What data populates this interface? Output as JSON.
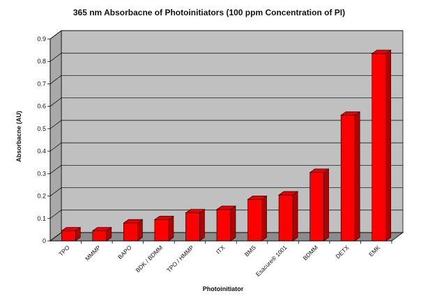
{
  "chart_data": {
    "type": "bar",
    "title": "365 nm Absorbacne of Photoinitiators (100 ppm Concentration of PI)",
    "xlabel": "Photoinitiator",
    "ylabel": "Absorbacne (AU)",
    "ylim": [
      0,
      0.9
    ],
    "yticks": [
      "0",
      "0.1",
      "0.2",
      "0.3",
      "0.4",
      "0.5",
      "0.6",
      "0.7",
      "0.8",
      "0.9"
    ],
    "categories": [
      "TPO",
      "MMMP",
      "BAPO",
      "BDK / BDMM",
      "TPO / HMMP",
      "ITX",
      "BMS",
      "Esacure® 1001",
      "BDMM",
      "DETX",
      "EMK"
    ],
    "values": [
      0.045,
      0.045,
      0.08,
      0.095,
      0.125,
      0.14,
      0.185,
      0.205,
      0.305,
      0.56,
      0.835
    ],
    "grid": true,
    "legend": "none",
    "colors": {
      "bar_front": "#ff0000",
      "bar_side": "#b30000",
      "bar_top": "#e60000",
      "plot_wall": "#c0c0c0",
      "plot_floor": "#8c8c8c",
      "gridline": "#000000"
    }
  }
}
